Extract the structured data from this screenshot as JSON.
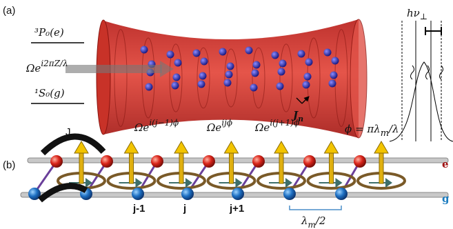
{
  "panel_a": {
    "label": "(a)",
    "upper_state": "³P₀(e)",
    "laser": {
      "base": "Ωe",
      "exponent": "i2πZ/λ"
    },
    "lower_state": "¹S₀(g)",
    "trap_frequency": {
      "base": "hν",
      "sub": "⊥"
    },
    "tunneling": {
      "base": "J",
      "sub": "n"
    }
  },
  "panel_b": {
    "label": "(b)",
    "tunneling": {
      "base": "J",
      "sub": "n"
    },
    "phases": [
      {
        "base": "Ωe",
        "exponent": "i(j−1)ϕ"
      },
      {
        "base": "Ωe",
        "exponent": "ijϕ"
      },
      {
        "base": "Ωe",
        "exponent": "i(j+1)ϕ"
      }
    ],
    "relation": {
      "lhs": "ϕ = πλ",
      "sub": "m",
      "rhs": "/λ"
    },
    "excited_label": "e",
    "ground_label": "g",
    "sites": [
      "j-1",
      "j",
      "j+1"
    ],
    "spacing": {
      "base": "λ",
      "sub": "m",
      "rhs": "/2"
    }
  }
}
